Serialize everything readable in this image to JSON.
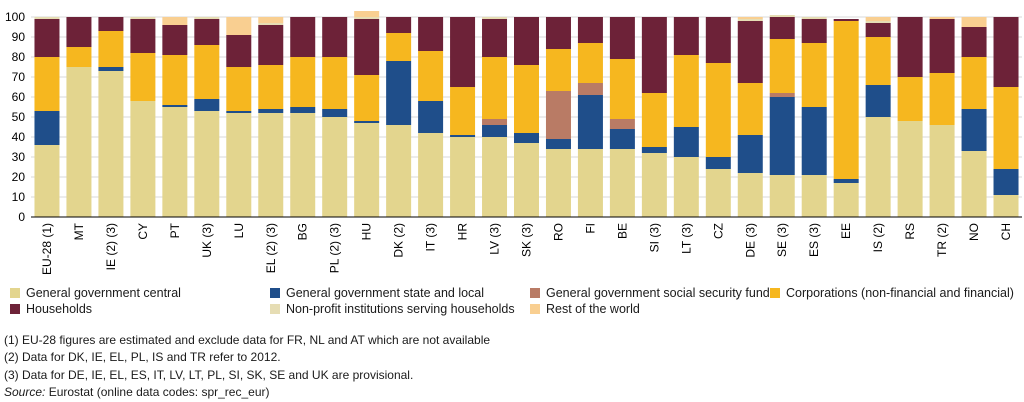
{
  "chart_data": {
    "type": "stacked-bar",
    "ylim": [
      0,
      100
    ],
    "yticks": [
      0,
      10,
      20,
      30,
      40,
      50,
      60,
      70,
      80,
      90,
      100
    ],
    "categories": [
      "EU-28 (1)",
      "MT",
      "IE (2) (3)",
      "CY",
      "PT",
      "UK (3)",
      "LU",
      "EL (2) (3)",
      "BG",
      "PL (2) (3)",
      "HU",
      "DK (2)",
      "IT (3)",
      "HR",
      "LV (3)",
      "SK (3)",
      "RO",
      "FI",
      "BE",
      "SI (3)",
      "LT (3)",
      "CZ",
      "DE (3)",
      "SE (3)",
      "ES (3)",
      "EE",
      "IS (2)",
      "RS",
      "TR (2)",
      "NO",
      "CH"
    ],
    "series": [
      {
        "name": "General government central",
        "color": "#e3d58e",
        "values": [
          36,
          75,
          73,
          58,
          55,
          53,
          52,
          52,
          52,
          50,
          47,
          46,
          42,
          40,
          40,
          37,
          34,
          34,
          34,
          32,
          30,
          24,
          22,
          21,
          21,
          17,
          50,
          48,
          46,
          33,
          11
        ]
      },
      {
        "name": "General government state and local",
        "color": "#1f4e8a",
        "values": [
          17,
          0,
          2,
          0,
          1,
          6,
          1,
          2,
          3,
          4,
          1,
          32,
          16,
          1,
          6,
          5,
          5,
          27,
          10,
          3,
          15,
          6,
          19,
          39,
          34,
          2,
          16,
          0,
          0,
          21,
          13
        ]
      },
      {
        "name": "General government social security funds",
        "color": "#b97b65",
        "values": [
          0,
          0,
          0,
          0,
          0,
          0,
          0,
          0,
          0,
          0,
          0,
          0,
          0,
          0,
          3,
          0,
          24,
          6,
          5,
          0,
          0,
          0,
          0,
          2,
          0,
          0,
          0,
          0,
          0,
          0,
          0
        ]
      },
      {
        "name": "Corporations (non-financial and financial)",
        "color": "#f6b71f",
        "values": [
          27,
          10,
          18,
          24,
          25,
          27,
          22,
          22,
          25,
          26,
          23,
          14,
          25,
          24,
          31,
          34,
          21,
          20,
          30,
          27,
          36,
          47,
          26,
          27,
          32,
          79,
          24,
          22,
          26,
          26,
          41
        ]
      },
      {
        "name": "Households",
        "color": "#6d2238",
        "values": [
          19,
          15,
          7,
          17,
          15,
          13,
          16,
          20,
          20,
          20,
          28,
          8,
          17,
          35,
          19,
          24,
          16,
          13,
          21,
          38,
          19,
          23,
          31,
          11,
          12,
          1,
          7,
          30,
          27,
          15,
          35
        ]
      },
      {
        "name": "Non-profit institutions serving households",
        "color": "#e6ddb4",
        "values": [
          1,
          0,
          0,
          1,
          0,
          1,
          0,
          1,
          0,
          0,
          1,
          0,
          0,
          0,
          1,
          0,
          0,
          0,
          0,
          0,
          0,
          0,
          1,
          1,
          1,
          0,
          1,
          0,
          0,
          0,
          0
        ]
      },
      {
        "name": "Rest of the world",
        "color": "#f9cf91",
        "values": [
          0,
          0,
          0,
          0,
          4,
          0,
          9,
          3,
          0,
          0,
          3,
          0,
          0,
          0,
          0,
          0,
          0,
          0,
          0,
          0,
          0,
          0,
          1,
          0,
          0,
          0,
          2,
          0,
          1,
          5,
          0
        ]
      }
    ]
  },
  "notes": [
    "(1) EU-28 figures are estimated and exclude data for FR, NL and AT which are not available",
    "(2) Data for DK, IE, EL, PL, IS and TR refer to 2012.",
    "(3) Data for DE, IE, EL, ES, IT, LV, LT, PL, SI, SK, SE and UK are provisional."
  ],
  "source": {
    "label": "Source:",
    "text": "Eurostat (online data codes: spr_rec_eur)"
  }
}
